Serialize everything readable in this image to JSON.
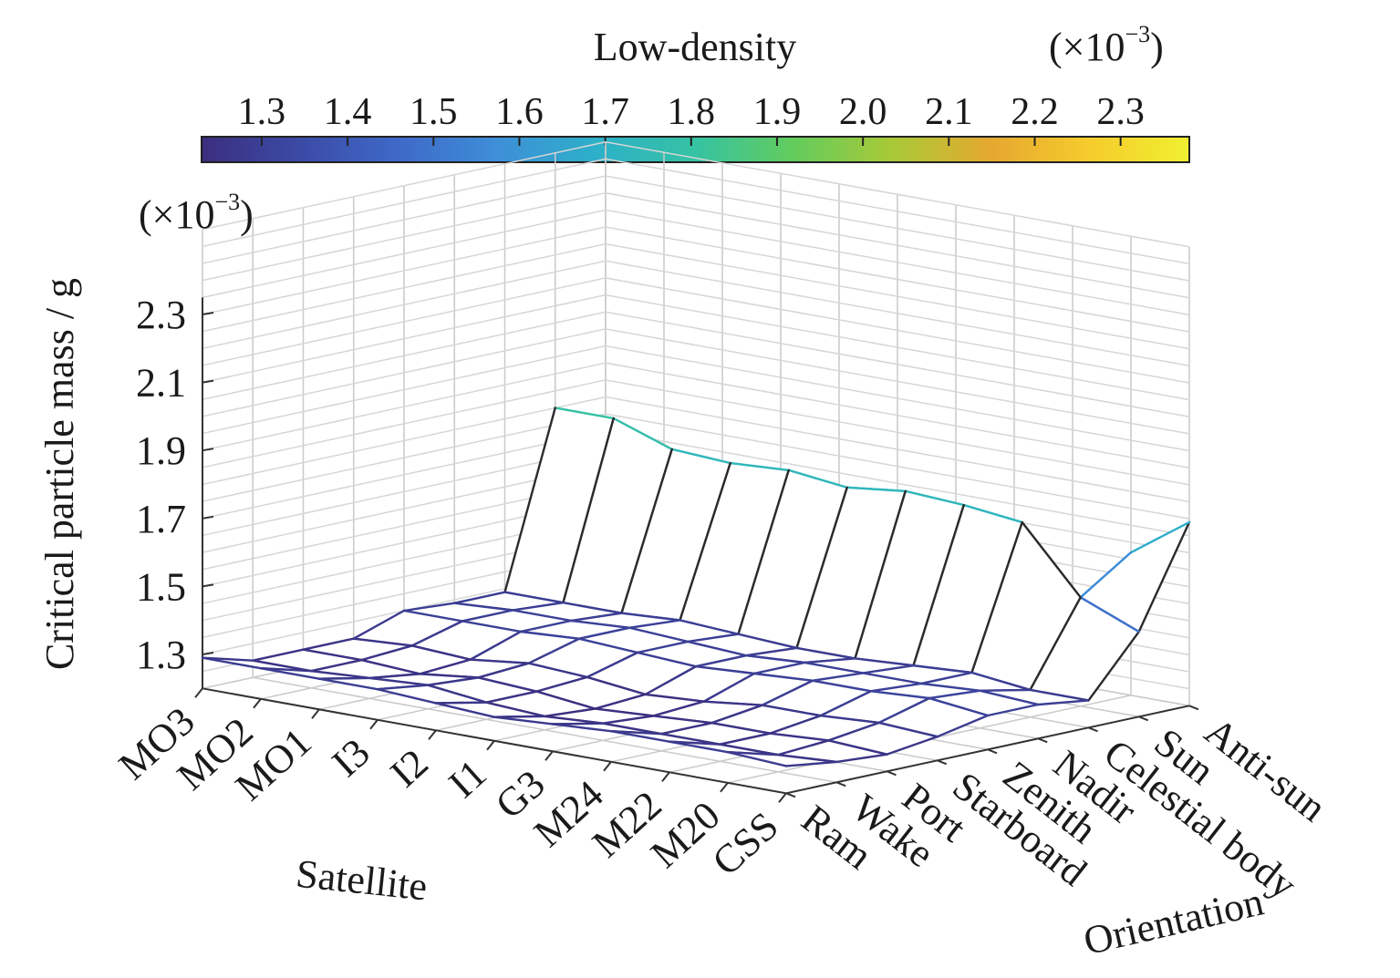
{
  "chart_data": {
    "type": "surface3d",
    "title": "",
    "colorbar": {
      "title": "Low-density",
      "exponent_label": "(×10",
      "exponent_sup": "−3",
      "exponent_close": ")",
      "ticks": [
        "1.3",
        "1.4",
        "1.5",
        "1.6",
        "1.7",
        "1.8",
        "1.9",
        "2.0",
        "2.1",
        "2.2",
        "2.3"
      ],
      "range": [
        1.23,
        2.38
      ],
      "colormap": [
        "#3b2e7e",
        "#3b4ba6",
        "#3f69c8",
        "#3e8fd8",
        "#2db0c9",
        "#35c3a2",
        "#63cc5c",
        "#a9c936",
        "#e6a830",
        "#f6cc2c",
        "#f0f030"
      ]
    },
    "zaxis": {
      "label": "Critical particle mass / g",
      "exponent_label": "(×10",
      "exponent_sup": "−3",
      "exponent_close": ")",
      "ticks": [
        "1.3",
        "1.5",
        "1.7",
        "1.9",
        "2.1",
        "2.3"
      ],
      "tick_values": [
        1.3,
        1.5,
        1.7,
        1.9,
        2.1,
        2.3
      ],
      "zlim": [
        1.2,
        2.55
      ]
    },
    "xaxis": {
      "label": "Satellite",
      "categories": [
        "MO3",
        "MO2",
        "MO1",
        "I3",
        "I2",
        "I1",
        "G3",
        "M24",
        "M22",
        "M20",
        "CSS"
      ]
    },
    "yaxis": {
      "label": "Orientation",
      "categories": [
        "Ram",
        "Wake",
        "Port",
        "Starboard",
        "Zenith",
        "Nadir",
        "Celestial body",
        "Sun",
        "Anti-sun"
      ]
    },
    "surface": [
      [
        1.29,
        1.29,
        1.29,
        1.29,
        1.28,
        1.27,
        1.28,
        1.29,
        1.29,
        1.29,
        1.28
      ],
      [
        1.25,
        1.25,
        1.26,
        1.27,
        1.25,
        1.24,
        1.25,
        1.25,
        1.25,
        1.25,
        1.26
      ],
      [
        1.25,
        1.25,
        1.24,
        1.26,
        1.25,
        1.23,
        1.24,
        1.25,
        1.25,
        1.26,
        1.25
      ],
      [
        1.25,
        1.26,
        1.25,
        1.27,
        1.26,
        1.24,
        1.25,
        1.27,
        1.27,
        1.28,
        1.27
      ],
      [
        1.3,
        1.3,
        1.3,
        1.31,
        1.3,
        1.29,
        1.3,
        1.31,
        1.31,
        1.32,
        1.3
      ],
      [
        1.29,
        1.3,
        1.3,
        1.31,
        1.3,
        1.29,
        1.3,
        1.3,
        1.3,
        1.31,
        1.3
      ],
      [
        1.29,
        1.29,
        1.29,
        1.3,
        1.29,
        1.28,
        1.28,
        1.29,
        1.3,
        1.28,
        1.28
      ],
      [
        1.8,
        1.8,
        1.74,
        1.73,
        1.74,
        1.72,
        1.74,
        1.73,
        1.71,
        1.52,
        1.45
      ],
      [
        1.29,
        1.29,
        1.28,
        1.3,
        1.28,
        1.27,
        1.28,
        1.29,
        1.3,
        1.62,
        1.74
      ]
    ]
  }
}
